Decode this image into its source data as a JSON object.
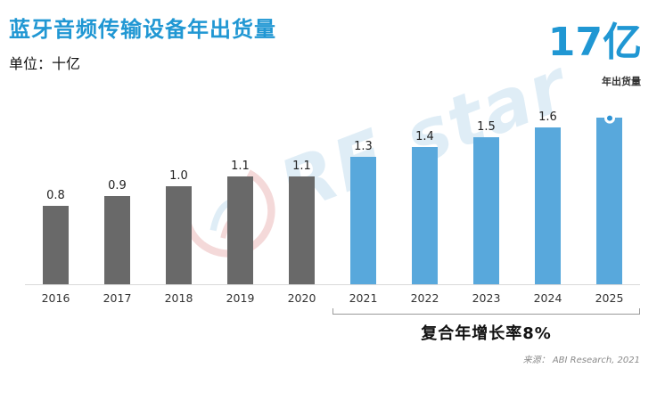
{
  "header": {
    "title": "蓝牙音频传输设备年出货量",
    "unit_label": "单位：十亿",
    "highlight_value": "17亿",
    "highlight_caption": "年出货量"
  },
  "chart_data": {
    "type": "bar",
    "categories": [
      "2016",
      "2017",
      "2018",
      "2019",
      "2020",
      "2021",
      "2022",
      "2023",
      "2024",
      "2025"
    ],
    "values": [
      0.8,
      0.9,
      1.0,
      1.1,
      1.1,
      1.3,
      1.4,
      1.5,
      1.6,
      1.7
    ],
    "labels": [
      "0.8",
      "0.9",
      "1.0",
      "1.1",
      "1.1",
      "1.3",
      "1.4",
      "1.5",
      "1.6",
      ""
    ],
    "historical_count": 5,
    "series_colors": {
      "historical": "#696969",
      "forecast": "#58a8dc"
    },
    "marker_year": "2025",
    "marker_color": "#2e93d4",
    "ylim": [
      0,
      1.8
    ],
    "grid": false,
    "legend": false,
    "title": "蓝牙音频传输设备年出货量",
    "ylabel": "十亿",
    "annotation": {
      "label": "复合年增长率8%",
      "span": [
        "2021",
        "2025"
      ]
    }
  },
  "colors": {
    "accent_blue": "#2097d3",
    "bar_gray": "#696969",
    "bar_blue": "#58a8dc"
  },
  "watermark": {
    "text": "RF star"
  },
  "footer": {
    "source": "来源：  ABI Research, 2021"
  }
}
